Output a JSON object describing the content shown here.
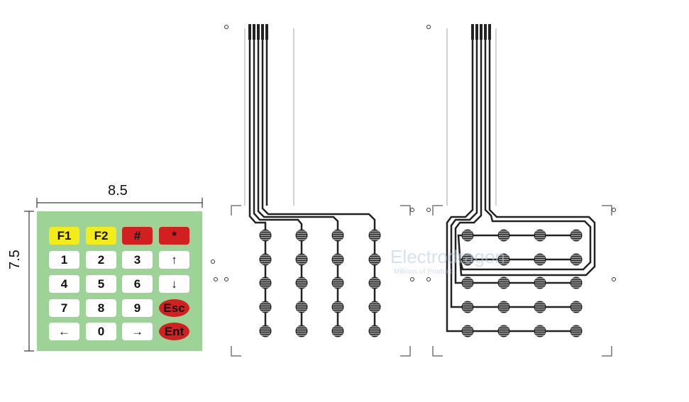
{
  "dimensions": {
    "width_label": "8.5",
    "height_label": "7.5"
  },
  "keypad": {
    "colors": {
      "background": "#9dd397",
      "white_key": "#ffffff",
      "yellow_key": "#f4ec18",
      "red_key": "#d21f1f"
    },
    "rows": [
      [
        {
          "label": "F1",
          "color": "yellow"
        },
        {
          "label": "F2",
          "color": "yellow"
        },
        {
          "label": "#",
          "color": "red"
        },
        {
          "label": "*",
          "color": "red"
        }
      ],
      [
        {
          "label": "1",
          "color": "white"
        },
        {
          "label": "2",
          "color": "white"
        },
        {
          "label": "3",
          "color": "white"
        },
        {
          "label": "↑",
          "color": "white"
        }
      ],
      [
        {
          "label": "4",
          "color": "white"
        },
        {
          "label": "5",
          "color": "white"
        },
        {
          "label": "6",
          "color": "white"
        },
        {
          "label": "↓",
          "color": "white"
        }
      ],
      [
        {
          "label": "7",
          "color": "white"
        },
        {
          "label": "8",
          "color": "white"
        },
        {
          "label": "9",
          "color": "white"
        },
        {
          "label": "Esc",
          "color": "red-oval"
        }
      ],
      [
        {
          "label": "←",
          "color": "white"
        },
        {
          "label": "0",
          "color": "white"
        },
        {
          "label": "→",
          "color": "white"
        },
        {
          "label": "Ent",
          "color": "red-oval"
        }
      ]
    ]
  },
  "watermark": {
    "brand": "Electrodragon",
    "tagline": "Millions of Products"
  }
}
